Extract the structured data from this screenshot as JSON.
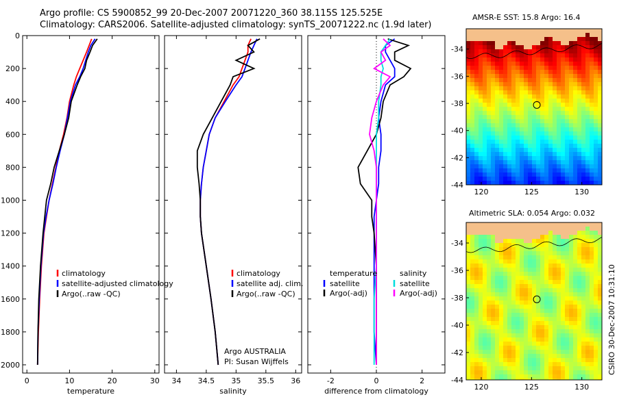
{
  "header": {
    "line1": "Argo profile: CS 5900852_99 20-Dec-2007 20071220_360 38.115S 125.525E",
    "line2": "Climatology: CARS2006. Satellite-adjusted climatology: synTS_20071222.nc (1.9d later)"
  },
  "side_label": "CSIRO 30-Dec-2007 10:31:10",
  "colors": {
    "climatology": "#ff0000",
    "satellite": "#0000ff",
    "argo": "#000000",
    "sal_satellite": "#00dddd",
    "sal_argo": "#ff00ff",
    "land": "#f5c08a"
  },
  "chart_data": [
    {
      "type": "line",
      "name": "temperature-panel",
      "xlabel": "temperature",
      "xlim": [
        -1,
        31
      ],
      "ylim": [
        2050,
        0
      ],
      "xticks": [
        0,
        10,
        20,
        30
      ],
      "yticks": [
        0,
        200,
        400,
        600,
        800,
        1000,
        1200,
        1400,
        1600,
        1800,
        2000
      ],
      "depth": [
        20,
        60,
        100,
        150,
        200,
        250,
        300,
        400,
        500,
        600,
        700,
        800,
        900,
        1000,
        1100,
        1200,
        1400,
        1600,
        1800,
        2000
      ],
      "series": [
        {
          "name": "climatology",
          "color": "#ff0000",
          "values": [
            15.2,
            14.6,
            14.0,
            13.2,
            12.4,
            11.6,
            11.0,
            10.0,
            9.4,
            8.6,
            7.6,
            6.8,
            6.0,
            5.2,
            4.6,
            4.0,
            3.4,
            3.0,
            2.7,
            2.5
          ]
        },
        {
          "name": "satellite-adjusted climatology",
          "color": "#0000ff",
          "values": [
            16.0,
            15.0,
            14.4,
            13.8,
            13.2,
            12.4,
            11.4,
            10.2,
            9.5,
            8.8,
            7.8,
            6.9,
            6.1,
            5.2,
            4.5,
            3.9,
            3.3,
            2.9,
            2.6,
            2.5
          ]
        },
        {
          "name": "Argo(..raw -QC)",
          "color": "#000000",
          "values": [
            16.5,
            15.4,
            14.8,
            14.0,
            13.6,
            12.6,
            11.8,
            10.4,
            9.8,
            8.8,
            7.6,
            6.4,
            5.6,
            4.6,
            4.2,
            3.8,
            3.2,
            2.8,
            2.6,
            2.5
          ]
        }
      ],
      "legend": [
        "climatology",
        "satellite-adjusted climatology",
        "Argo(..raw -QC)"
      ]
    },
    {
      "type": "line",
      "name": "salinity-panel",
      "xlabel": "salinity",
      "xlim": [
        33.8,
        36.1
      ],
      "ylim": [
        2050,
        0
      ],
      "xticks": [
        34,
        34.5,
        35,
        35.5,
        36
      ],
      "xticklabels": [
        "34",
        "34.5",
        "35",
        "35.5",
        "36"
      ],
      "depth": [
        20,
        60,
        100,
        150,
        200,
        250,
        300,
        400,
        500,
        600,
        700,
        800,
        900,
        1000,
        1100,
        1200,
        1400,
        1600,
        1800,
        2000
      ],
      "series": [
        {
          "name": "climatology",
          "color": "#ff0000",
          "values": [
            35.25,
            35.2,
            35.2,
            35.15,
            35.1,
            35.05,
            34.95,
            34.8,
            34.65,
            34.55,
            34.5,
            34.45,
            34.42,
            34.4,
            34.4,
            34.42,
            34.5,
            34.58,
            34.65,
            34.7
          ]
        },
        {
          "name": "satellite adj. clim.",
          "color": "#0000ff",
          "values": [
            35.35,
            35.3,
            35.25,
            35.2,
            35.15,
            35.1,
            35.0,
            34.82,
            34.65,
            34.55,
            34.5,
            34.45,
            34.42,
            34.4,
            34.4,
            34.42,
            34.5,
            34.58,
            34.65,
            34.7
          ]
        },
        {
          "name": "Argo(..raw -QC)",
          "color": "#000000",
          "values": [
            35.4,
            35.2,
            35.3,
            35.0,
            35.3,
            34.95,
            34.9,
            34.75,
            34.6,
            34.45,
            34.35,
            34.35,
            34.38,
            34.4,
            34.4,
            34.42,
            34.5,
            34.58,
            34.65,
            34.7
          ]
        }
      ],
      "legend": [
        "climatology",
        "satellite adj. clim.",
        "Argo(..raw -QC)"
      ],
      "annotation": [
        "Argo AUSTRALIA",
        "PI: Susan Wijffels"
      ]
    },
    {
      "type": "line",
      "name": "difference-panel",
      "xlabel": "difference from climatology",
      "xlim": [
        -3,
        3
      ],
      "ylim": [
        2050,
        0
      ],
      "xticks": [
        -2,
        0,
        2
      ],
      "depth": [
        20,
        60,
        100,
        150,
        200,
        250,
        300,
        400,
        500,
        600,
        700,
        800,
        900,
        1000,
        1100,
        1200,
        1400,
        1600,
        1800,
        2000
      ],
      "series": [
        {
          "name": "temperature satellite",
          "color": "#0000ff",
          "values": [
            0.8,
            0.4,
            0.4,
            0.6,
            0.8,
            0.8,
            0.4,
            0.2,
            0.1,
            0.2,
            0.2,
            0.1,
            0.1,
            0.0,
            -0.1,
            -0.1,
            -0.1,
            -0.1,
            -0.1,
            0.0
          ]
        },
        {
          "name": "temperature Argo(-adj)",
          "color": "#000000",
          "values": [
            0.5,
            1.4,
            0.8,
            0.8,
            1.5,
            1.2,
            0.6,
            0.3,
            0.2,
            0.0,
            -0.4,
            -0.8,
            -0.7,
            -0.2,
            -0.2,
            -0.1,
            0.0,
            0.0,
            0.0,
            0.0
          ]
        },
        {
          "name": "salinity satellite",
          "color": "#00dddd",
          "values": [
            0.6,
            0.4,
            0.2,
            0.2,
            0.3,
            0.2,
            0.2,
            0.1,
            0.1,
            0.0,
            0.0,
            0.0,
            0.0,
            0.0,
            0.0,
            0.0,
            0.0,
            -0.1,
            -0.1,
            -0.1
          ]
        },
        {
          "name": "salinity Argo(-adj)",
          "color": "#ff00ff",
          "values": [
            0.3,
            0.6,
            0.2,
            0.4,
            -0.1,
            0.6,
            0.3,
            0.0,
            -0.2,
            -0.3,
            -0.1,
            0.0,
            0.0,
            0.0,
            0.0,
            0.0,
            0.0,
            0.0,
            0.0,
            0.0
          ]
        }
      ],
      "legend_headers": [
        "temperature",
        "salinity"
      ],
      "legend": [
        "satellite",
        "Argo(-adj)",
        "satellite",
        "Argo(-adj)"
      ]
    },
    {
      "type": "heatmap",
      "name": "sst-map",
      "title": "AMSR-E SST: 15.8 Argo: 16.4",
      "xlim": [
        118.5,
        132
      ],
      "ylim": [
        -44,
        -32.5
      ],
      "xticks": [
        120,
        125,
        130
      ],
      "yticks": [
        -34,
        -36,
        -38,
        -40,
        -42,
        -44
      ],
      "marker": [
        125.525,
        -38.115
      ]
    },
    {
      "type": "heatmap",
      "name": "sla-map",
      "title": "Altimetric SLA: 0.054 Argo: 0.032",
      "xlim": [
        118.5,
        132
      ],
      "ylim": [
        -44,
        -32.5
      ],
      "xticks": [
        120,
        125,
        130
      ],
      "yticks": [
        -34,
        -36,
        -38,
        -40,
        -42,
        -44
      ],
      "marker": [
        125.525,
        -38.115
      ]
    }
  ]
}
